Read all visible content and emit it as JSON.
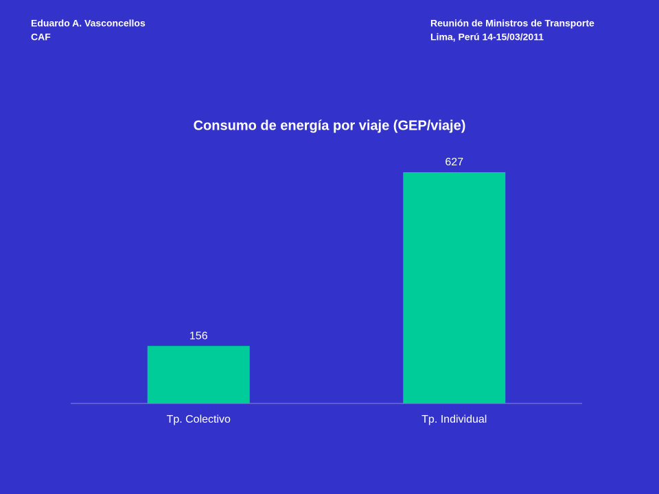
{
  "header": {
    "left": [
      "Eduardo A. Vasconcellos",
      "CAF"
    ],
    "right": [
      "Reunión de Ministros  de Transporte",
      "Lima, Perú 14-15/03/2011"
    ]
  },
  "chart_data": {
    "type": "bar",
    "title": "Consumo de energía por viaje (GEP/viaje)",
    "categories": [
      "Tp. Colectivo",
      "Tp. Individual"
    ],
    "values": [
      156,
      627
    ],
    "color": "#00cc99"
  }
}
